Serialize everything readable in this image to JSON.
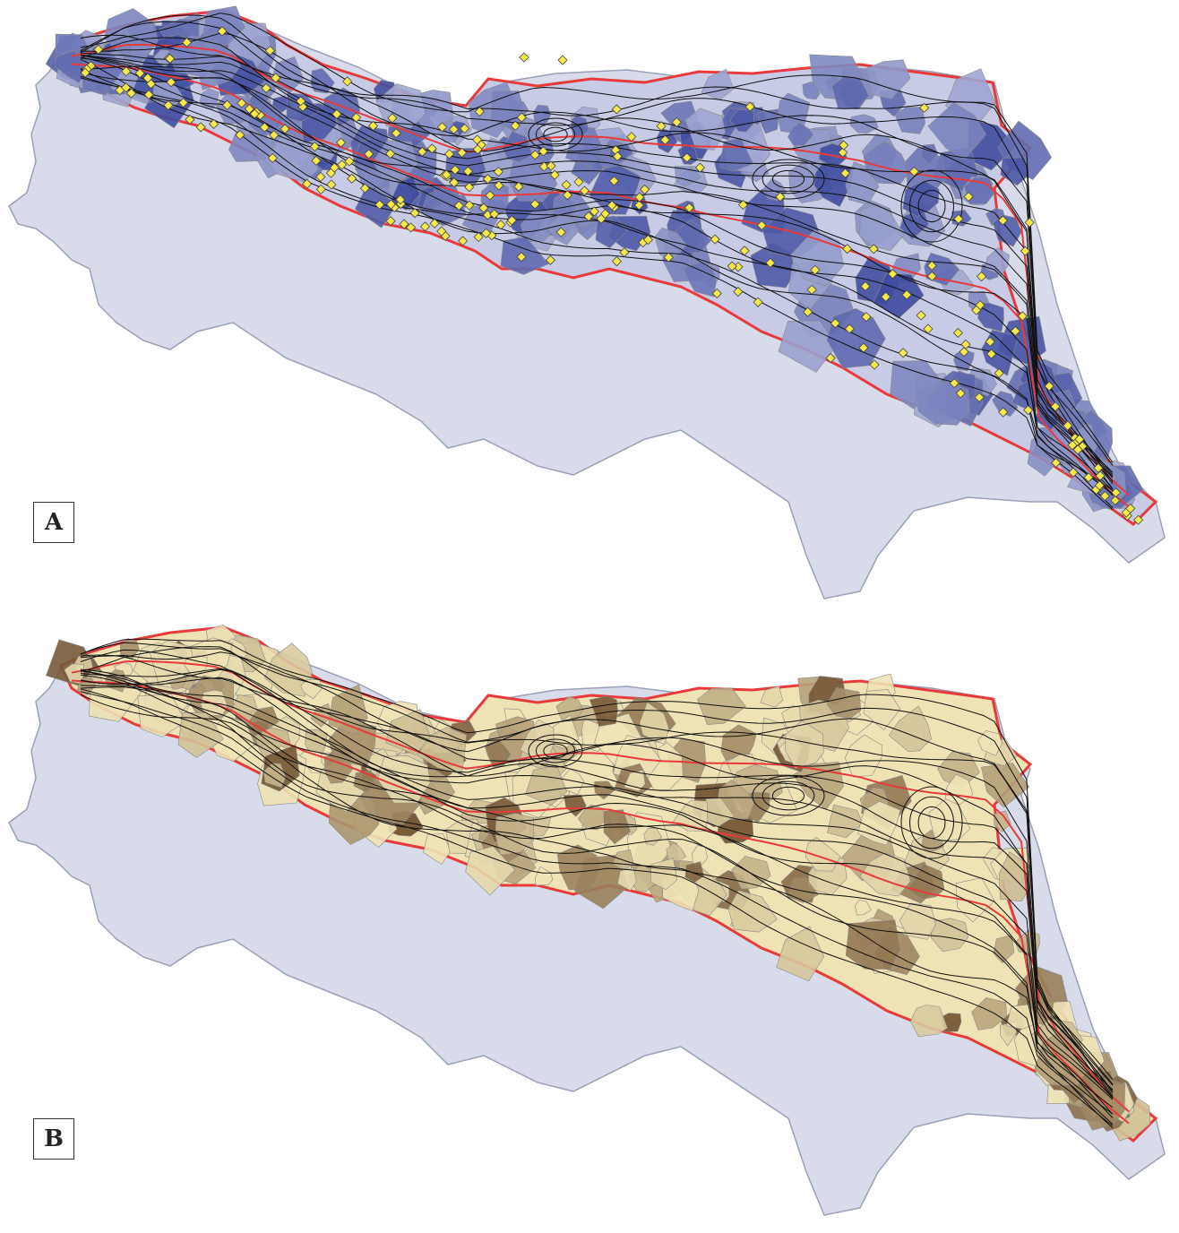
{
  "panels": [
    {
      "label": "A",
      "fill_low": "#c7cbe6",
      "fill_high": "#3d4a9e",
      "has_points": true,
      "point_color": "#f7e94a"
    },
    {
      "label": "B",
      "fill_low": "#efe3b6",
      "fill_high": "#6b4a2a",
      "has_points": false
    }
  ],
  "colors": {
    "region_background": "#d8dcea",
    "region_outline": "#9aa0b8",
    "zone_boundary": "#e83a3a",
    "contour_line": "#111111",
    "cell_edge": "#8a8a8a"
  }
}
